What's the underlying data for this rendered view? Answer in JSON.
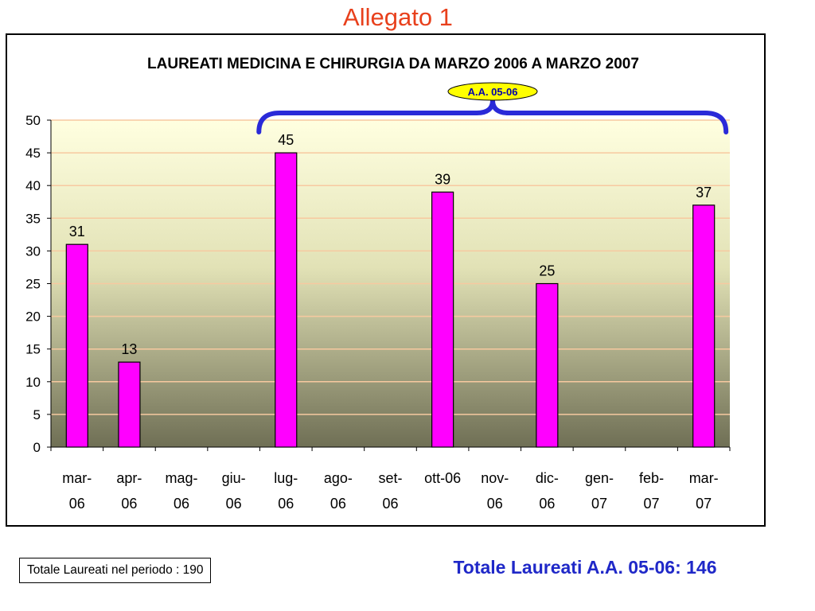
{
  "slide_title": "Allegato 1",
  "badge_label": "A.A. 05-06",
  "total_period_label": "Totale Laureati nel periodo : 190",
  "total_aa_label": "Totale Laureati A.A. 05-06: 146",
  "colors": {
    "slide_title": "#e8401c",
    "bar_fill": "#ff00ff",
    "brace": "#2a2ad8",
    "badge_fill": "#ffff00",
    "badge_text": "#0000aa",
    "total_aa_text": "#1f28c8",
    "grid_line": "#f7c9a0",
    "plot_bg_top": "#ffffe0",
    "plot_bg_bottom": "#6f6f55"
  },
  "chart_data": {
    "type": "bar",
    "title": "LAUREATI MEDICINA E CHIRURGIA DA MARZO 2006 A MARZO 2007",
    "categories": [
      [
        "mar-",
        "06"
      ],
      [
        "apr-",
        "06"
      ],
      [
        "mag-",
        "06"
      ],
      [
        "giu-",
        "06"
      ],
      [
        "lug-",
        "06"
      ],
      [
        "ago-",
        "06"
      ],
      [
        "set-",
        "06"
      ],
      [
        "ott-06"
      ],
      [
        "nov-",
        "06"
      ],
      [
        "dic-",
        "06"
      ],
      [
        "gen-",
        "07"
      ],
      [
        "feb-",
        "07"
      ],
      [
        "mar-",
        "07"
      ]
    ],
    "values": [
      31,
      13,
      null,
      null,
      45,
      null,
      null,
      39,
      null,
      25,
      null,
      null,
      37
    ],
    "data_labels": [
      "31",
      "13",
      "",
      "",
      "45",
      "",
      "",
      "39",
      "",
      "25",
      "",
      "",
      "37"
    ],
    "ylim": [
      0,
      50
    ],
    "yticks": [
      0,
      5,
      10,
      15,
      20,
      25,
      30,
      35,
      40,
      45,
      50
    ],
    "grid": true,
    "legend": "none",
    "annotation": {
      "text": "A.A. 05-06",
      "brace_from_category": 4,
      "brace_to_category": 12
    }
  }
}
